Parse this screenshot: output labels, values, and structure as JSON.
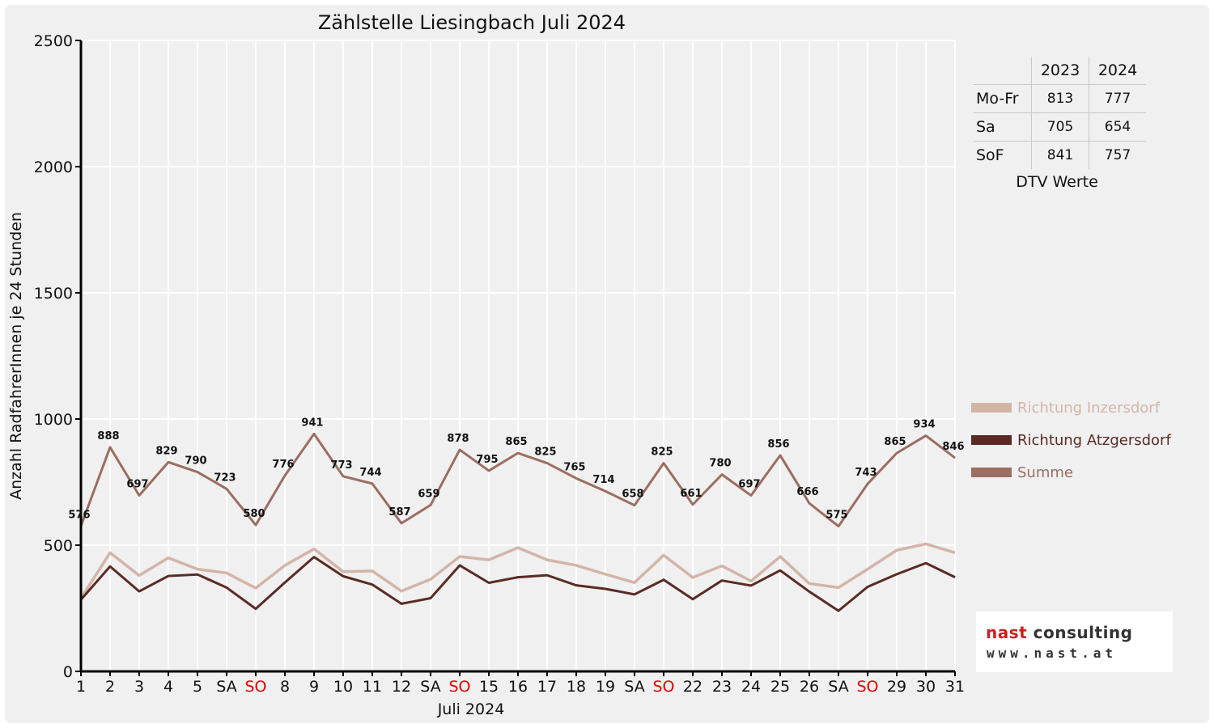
{
  "colors": {
    "inzersdorf": "#d3b5a8",
    "atzgersdorf": "#5a2b24",
    "summe": "#9a6e60",
    "sunday": "#e00000",
    "axis": "#000000",
    "grid": "#ffffff"
  },
  "chart_data": {
    "type": "line",
    "title": "Zählstelle Liesingbach Juli 2024",
    "xlabel": "Juli 2024",
    "ylabel": "Anzahl RadfahrerInnen je 24 Stunden",
    "ylim": [
      0,
      2500
    ],
    "yticks": [
      "0",
      "500",
      "1000",
      "1500",
      "2000",
      "2500"
    ],
    "grid": true,
    "legend_position": "right",
    "categories": [
      "1",
      "2",
      "3",
      "4",
      "5",
      "SA",
      "SO",
      "8",
      "9",
      "10",
      "11",
      "12",
      "SA",
      "SO",
      "15",
      "16",
      "17",
      "18",
      "19",
      "SA",
      "SO",
      "22",
      "23",
      "24",
      "25",
      "26",
      "SA",
      "SO",
      "29",
      "30",
      "31"
    ],
    "sunday_label": "SO",
    "series": [
      {
        "name": "Richtung Inzersdorf",
        "color": "#d3b5a8",
        "values": [
          290,
          470,
          380,
          450,
          405,
          390,
          330,
          420,
          485,
          395,
          398,
          318,
          365,
          455,
          442,
          490,
          442,
          420,
          385,
          352,
          460,
          372,
          418,
          358,
          455,
          348,
          332,
          405,
          480,
          505,
          470
        ]
      },
      {
        "name": "Richtung Atzgersdorf",
        "color": "#5a2b24",
        "values": [
          284,
          416,
          317,
          378,
          384,
          332,
          248,
          352,
          453,
          377,
          344,
          268,
          290,
          420,
          351,
          373,
          381,
          341,
          327,
          305,
          363,
          286,
          360,
          340,
          400,
          316,
          240,
          335,
          385,
          429,
          373
        ]
      },
      {
        "name": "Summe",
        "color": "#9a6e60",
        "values": [
          576,
          888,
          697,
          829,
          790,
          723,
          580,
          776,
          941,
          773,
          744,
          587,
          659,
          878,
          795,
          865,
          825,
          765,
          714,
          658,
          825,
          661,
          780,
          697,
          856,
          666,
          575,
          743,
          865,
          934,
          846
        ]
      }
    ],
    "data_labels": [
      "576",
      "888",
      "697",
      "829",
      "790",
      "723",
      "580",
      "776",
      "941",
      "773",
      "744",
      "587",
      "659",
      "878",
      "795",
      "865",
      "825",
      "765",
      "714",
      "658",
      "825",
      "661",
      "780",
      "697",
      "856",
      "666",
      "575",
      "743",
      "865",
      "934",
      "846"
    ]
  },
  "dtv": {
    "headers": [
      "2023",
      "2024"
    ],
    "rows": [
      {
        "label": "Mo-Fr",
        "v2023": "813",
        "v2024": "777"
      },
      {
        "label": "Sa",
        "v2023": "705",
        "v2024": "654"
      },
      {
        "label": "SoF",
        "v2023": "841",
        "v2024": "757"
      }
    ],
    "caption": "DTV Werte"
  },
  "logo": {
    "word1": "nast",
    "word2": "consulting",
    "url": "www.nast.at"
  }
}
